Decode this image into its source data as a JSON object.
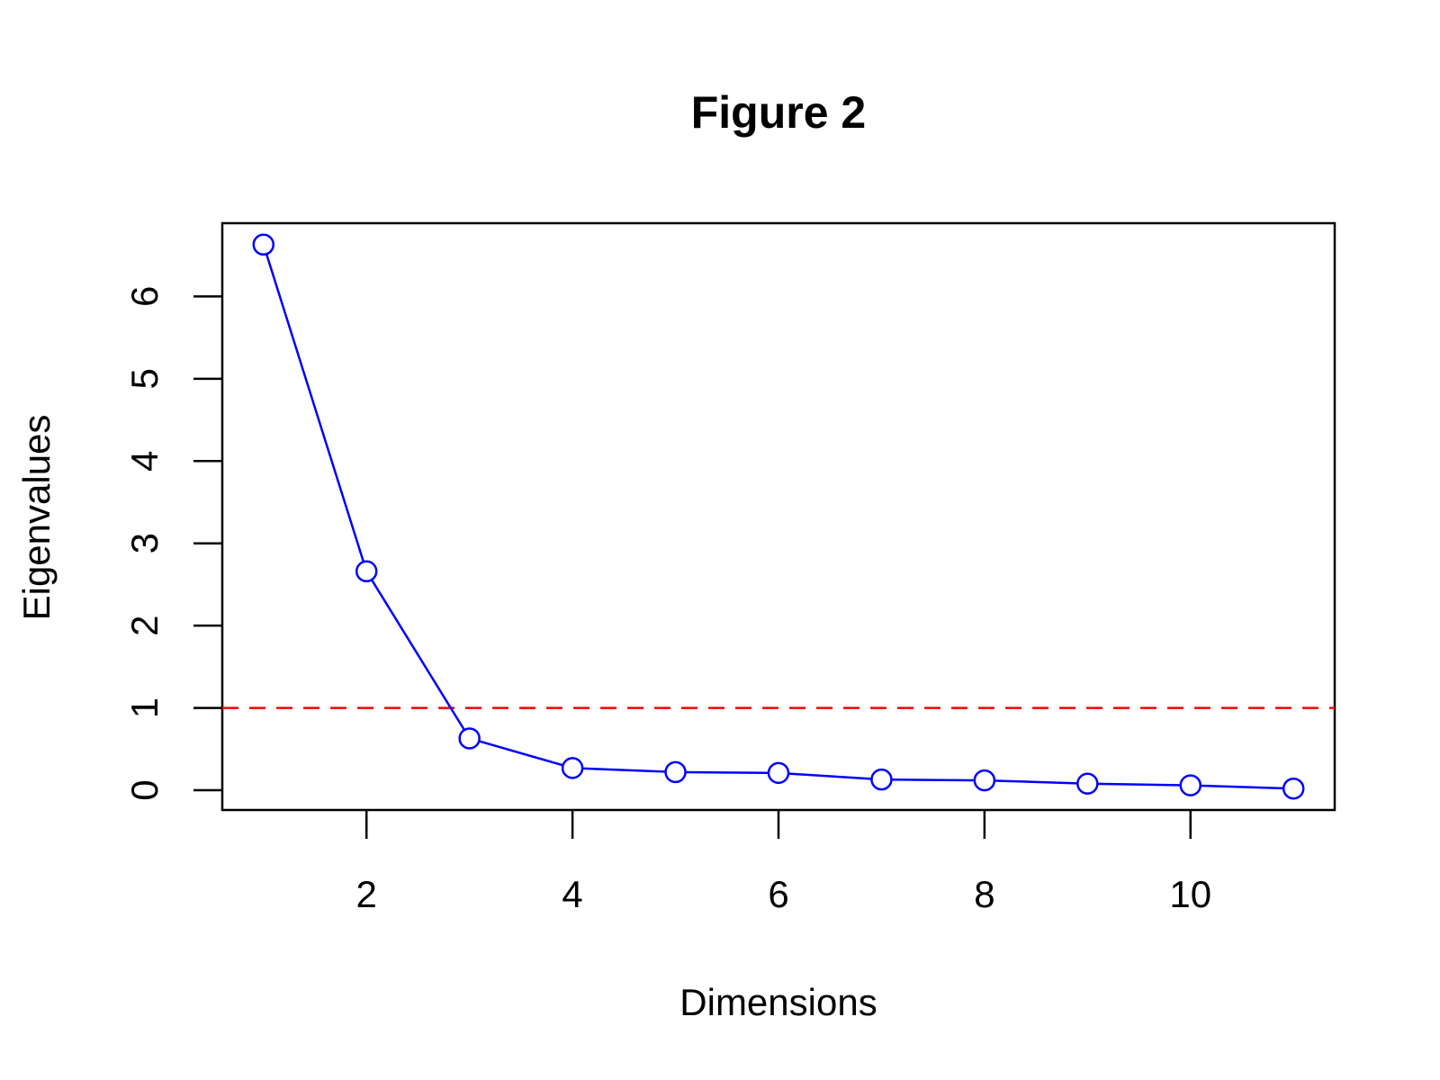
{
  "chart_data": {
    "type": "line",
    "title": "Figure 2",
    "x_label": "Dimensions",
    "y_label": "Eigenvalues",
    "x": [
      1,
      2,
      3,
      4,
      5,
      6,
      7,
      8,
      9,
      10,
      11
    ],
    "series": [
      {
        "color": "#0000ff",
        "values": [
          6.63,
          2.66,
          0.63,
          0.27,
          0.22,
          0.21,
          0.13,
          0.12,
          0.08,
          0.06,
          0.02
        ]
      }
    ],
    "hline": {
      "value": 1,
      "color": "#ff0000"
    },
    "xlim": [
      0.6,
      11.4
    ],
    "ylim": [
      -0.24,
      6.89
    ],
    "xticks": [
      2,
      4,
      6,
      8,
      10
    ],
    "yticks": [
      0,
      1,
      2,
      3,
      4,
      5,
      6
    ]
  }
}
